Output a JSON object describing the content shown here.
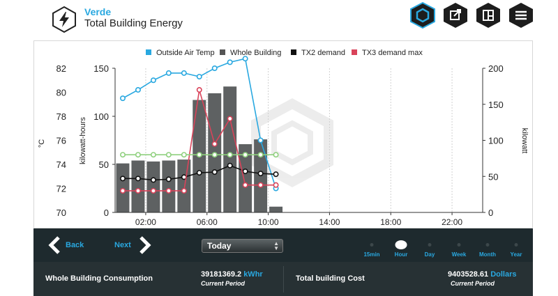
{
  "header": {
    "site": "Verde",
    "title": "Total Building Energy",
    "icons": [
      "lightning-logo-icon",
      "hexagon-icon",
      "export-icon",
      "layout-icon",
      "list-icon"
    ]
  },
  "chart_data": {
    "type": "bar",
    "x_axis": {
      "ticks": [
        "02:00",
        "06:00",
        "10:00",
        "14:00",
        "18:00",
        "22:00"
      ]
    },
    "y_axes": {
      "temp": {
        "label": "°C",
        "ticks": [
          "82",
          "80",
          "78",
          "76",
          "74",
          "72",
          "70"
        ],
        "range": [
          70,
          82
        ]
      },
      "kwh": {
        "label": "kilowatt-hours",
        "ticks": [
          "150",
          "100",
          "50",
          "0"
        ],
        "range": [
          0,
          150
        ]
      },
      "kw": {
        "label": "kilowatt",
        "ticks": [
          "200",
          "150",
          "100",
          "50",
          "0"
        ],
        "range": [
          0,
          200
        ]
      }
    },
    "legend": {
      "position": "top",
      "items": [
        {
          "name": "Outside Air Temp",
          "color": "#29a8e0"
        },
        {
          "name": "Whole Building",
          "color": "#555555"
        },
        {
          "name": "TX2 demand",
          "color": "#111111"
        },
        {
          "name": "TX3 demand max",
          "color": "#d9435a"
        }
      ]
    },
    "bars": {
      "name": "Whole Building",
      "color": "#5e6162",
      "hours": [
        0,
        1,
        2,
        3,
        4,
        5,
        6,
        7,
        8,
        9,
        10
      ],
      "values": [
        51,
        54,
        53,
        54,
        55,
        117,
        124,
        131,
        71,
        76,
        6
      ]
    },
    "series": [
      {
        "name": "Outside Air Temp",
        "axis": "temp",
        "color": "#29a8e0",
        "x": [
          0,
          1,
          2,
          3,
          4,
          5,
          6,
          7,
          8,
          9,
          10
        ],
        "y": [
          79.5,
          80.2,
          81.0,
          81.6,
          81.6,
          81.3,
          82.0,
          82.5,
          82.8,
          76.0,
          72.0
        ]
      },
      {
        "name": "TX2 demand",
        "axis": "kw",
        "color": "#111111",
        "x": [
          0,
          1,
          2,
          3,
          4,
          5,
          6,
          7,
          8,
          9,
          10
        ],
        "y": [
          47,
          47,
          45,
          46,
          49,
          55,
          56,
          65,
          57,
          54,
          53
        ]
      },
      {
        "name": "TX3 demand max",
        "axis": "kw",
        "color": "#d9435a",
        "x": [
          0,
          1,
          2,
          3,
          4,
          5,
          6,
          7,
          8,
          9,
          10
        ],
        "y": [
          30,
          30,
          30,
          30,
          30,
          170,
          95,
          130,
          38,
          38,
          38
        ]
      },
      {
        "name": "",
        "axis": "kw",
        "color": "#8fd07e",
        "x": [
          0,
          1,
          2,
          3,
          4,
          5,
          6,
          7,
          8,
          9,
          10
        ],
        "y": [
          80,
          80,
          80,
          80,
          80,
          80,
          80,
          80,
          80,
          80,
          80
        ]
      }
    ]
  },
  "controls": {
    "back": "Back",
    "next": "Next",
    "range_select": "Today",
    "periods": [
      "15min",
      "Hour",
      "Day",
      "Week",
      "Month",
      "Year"
    ],
    "active_period": "Hour"
  },
  "stats": {
    "consumption_label": "Whole Building Consumption",
    "consumption_value": "39181369.2",
    "consumption_unit": "kWhr",
    "consumption_period": "Current Period",
    "cost_label": "Total building Cost",
    "cost_value": "9403528.61",
    "cost_unit": "Dollars",
    "cost_period": "Current Period"
  }
}
